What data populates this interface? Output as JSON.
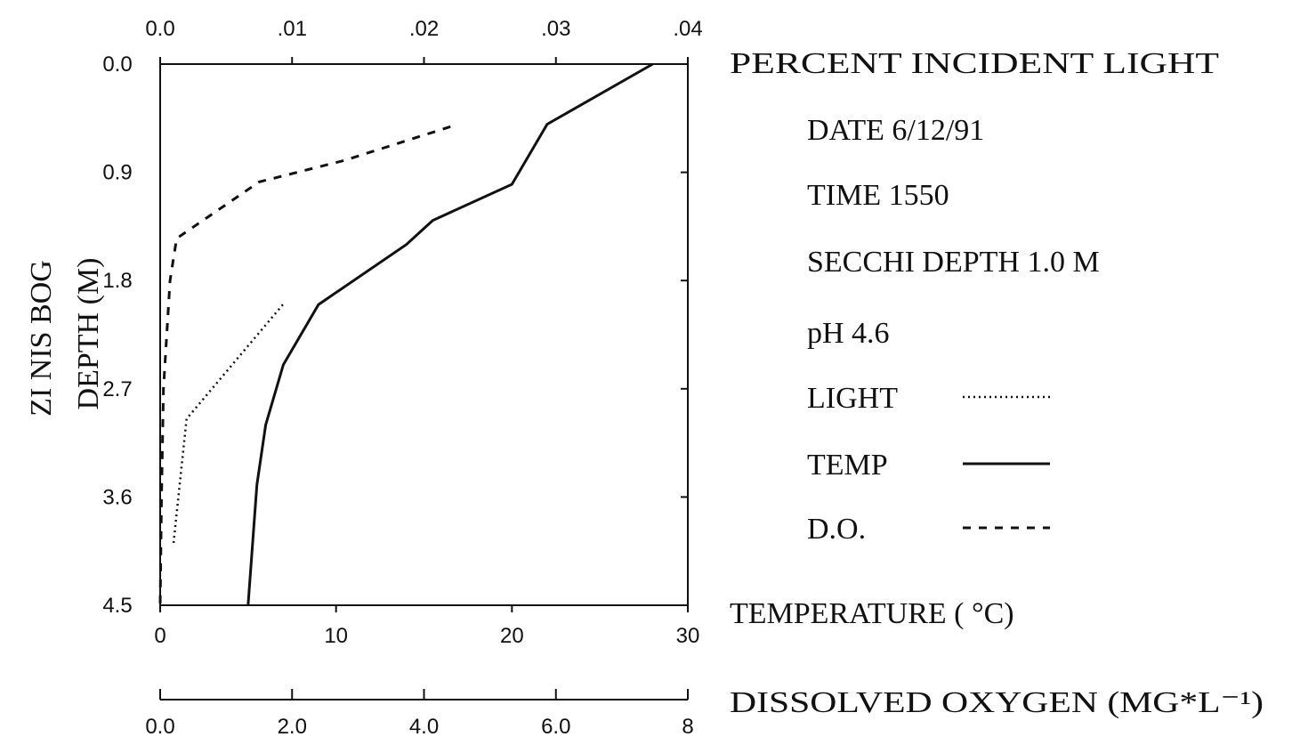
{
  "chart_data": {
    "type": "line",
    "site_label": "ZI  NIS BOG",
    "ylabel": "DEPTH (M)",
    "y_ticks": [
      "0.0",
      "0.9",
      "1.8",
      "2.7",
      "3.6",
      "4.5"
    ],
    "ylim": [
      0,
      4.5
    ],
    "y_inverted": true,
    "axes": {
      "light": {
        "label": "PERCENT INCIDENT LIGHT",
        "ticks": [
          "0.0",
          ".01",
          ".02",
          ".03",
          ".04"
        ],
        "tick_values": [
          0,
          0.01,
          0.02,
          0.03,
          0.04
        ],
        "range": [
          0,
          0.04
        ],
        "position": "top"
      },
      "temp": {
        "label": "TEMPERATURE ( °C)",
        "ticks": [
          "0",
          "10",
          "20",
          "30"
        ],
        "tick_values": [
          0,
          10,
          20,
          30
        ],
        "range": [
          0,
          30
        ],
        "position": "bottom"
      },
      "oxygen": {
        "label": "DISSOLVED OXYGEN (MG*L⁻¹)",
        "ticks": [
          "0.0",
          "2.0",
          "4.0",
          "6.0",
          "8"
        ],
        "tick_values": [
          0,
          2,
          4,
          6,
          8
        ],
        "range": [
          0,
          8
        ],
        "position": "bottom-detached"
      }
    },
    "series": [
      {
        "name": "TEMP",
        "axis": "temp",
        "style": "solid",
        "points": [
          [
            28.0,
            0.0
          ],
          [
            22.0,
            0.5
          ],
          [
            20.0,
            1.0
          ],
          [
            15.5,
            1.3
          ],
          [
            14.0,
            1.5
          ],
          [
            9.0,
            2.0
          ],
          [
            7.0,
            2.5
          ],
          [
            6.0,
            3.0
          ],
          [
            5.5,
            3.5
          ],
          [
            5.0,
            4.5
          ]
        ]
      },
      {
        "name": "LIGHT",
        "axis": "light",
        "style": "dotted",
        "points": [
          [
            0.0093,
            2.0
          ],
          [
            0.002,
            2.95
          ],
          [
            0.001,
            4.0
          ]
        ]
      },
      {
        "name": "D.O.",
        "axis": "oxygen",
        "style": "dashed",
        "points": [
          [
            4.4,
            0.52
          ],
          [
            2.8,
            0.8
          ],
          [
            1.5,
            0.98
          ],
          [
            0.25,
            1.45
          ],
          [
            0.15,
            1.8
          ],
          [
            0.05,
            2.7
          ],
          [
            0.02,
            3.6
          ],
          [
            0.0,
            4.5
          ]
        ]
      }
    ],
    "info": {
      "date": "DATE   6/12/91",
      "time": "TIME 1550",
      "secchi": "SECCHI DEPTH 1.0 M",
      "ph": "pH 4.6"
    },
    "legend": [
      {
        "label": "LIGHT",
        "style": "dotted"
      },
      {
        "label": "TEMP",
        "style": "solid"
      },
      {
        "label": "D.O.",
        "style": "dashed"
      }
    ]
  }
}
